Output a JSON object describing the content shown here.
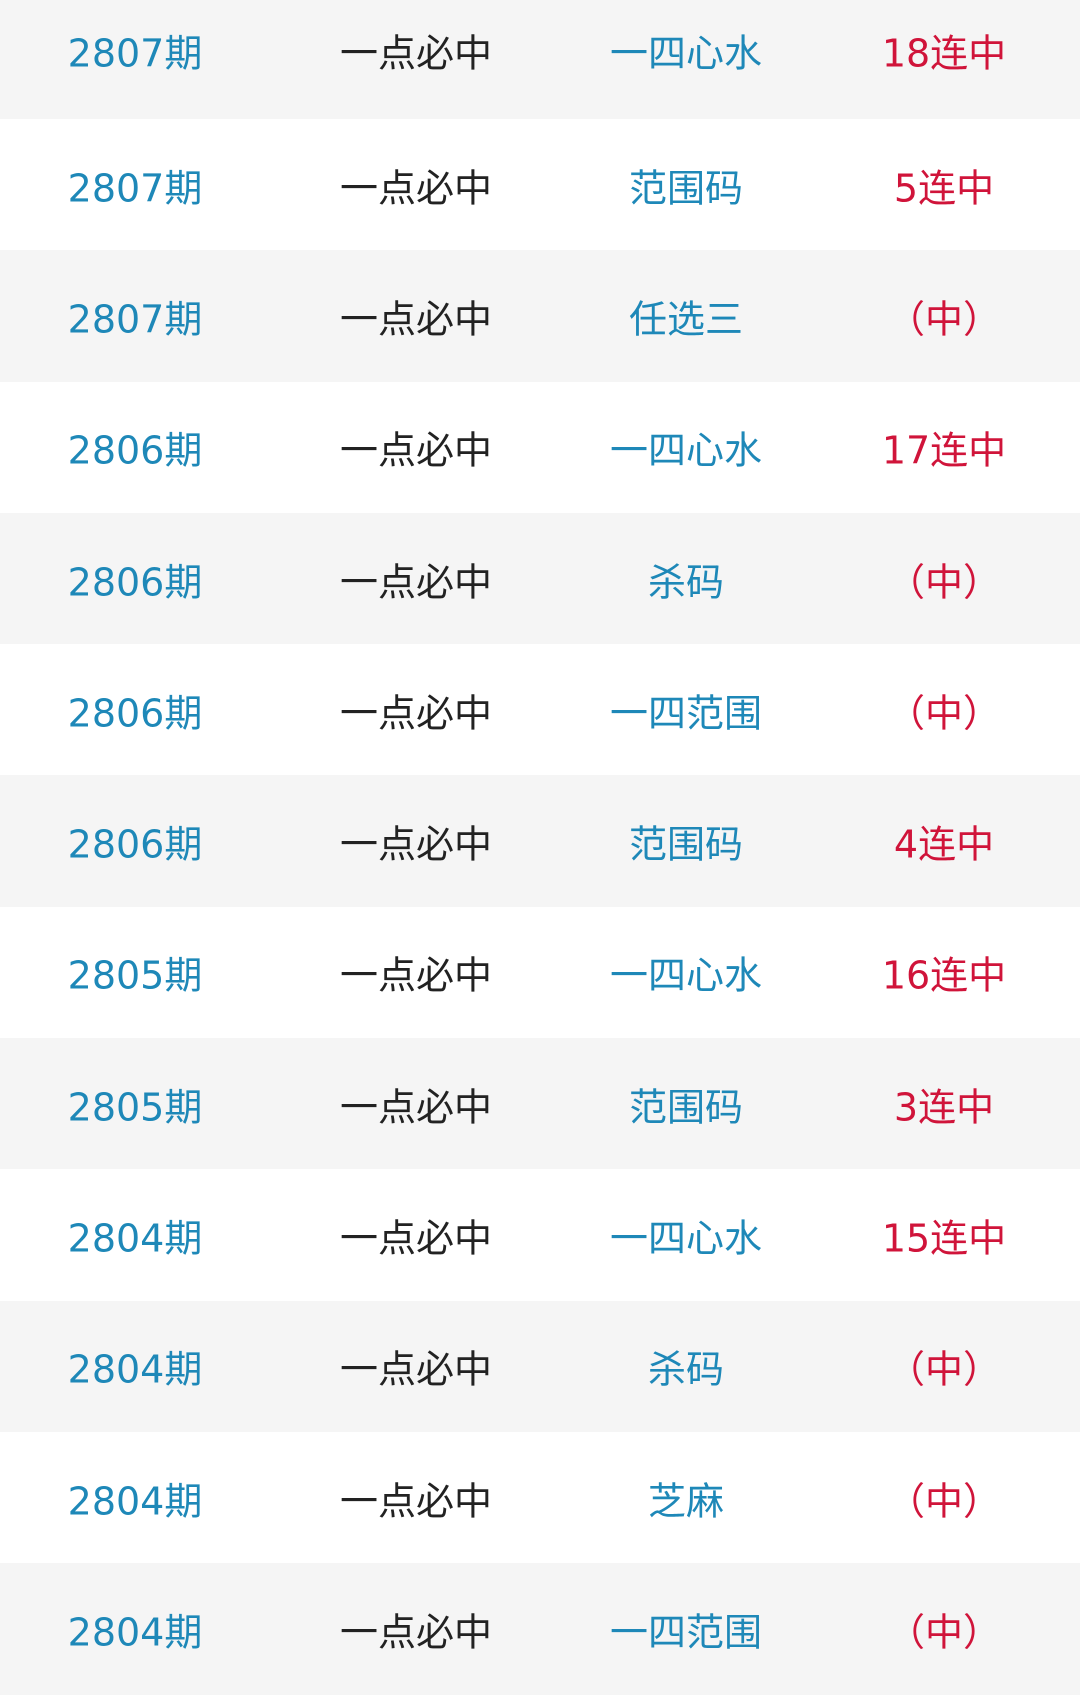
{
  "colors": {
    "issue": "#1e88b8",
    "type": "#222222",
    "category": "#1e88b8",
    "result": "#d0143a",
    "stripe": "#f5f5f5"
  },
  "rows": [
    {
      "issue": "2807期",
      "type": "一点必中",
      "category": "一四心水",
      "result": "18连中"
    },
    {
      "issue": "2807期",
      "type": "一点必中",
      "category": "范围码",
      "result": "5连中"
    },
    {
      "issue": "2807期",
      "type": "一点必中",
      "category": "任选三",
      "result": "（中）"
    },
    {
      "issue": "2806期",
      "type": "一点必中",
      "category": "一四心水",
      "result": "17连中"
    },
    {
      "issue": "2806期",
      "type": "一点必中",
      "category": "杀码",
      "result": "（中）"
    },
    {
      "issue": "2806期",
      "type": "一点必中",
      "category": "一四范围",
      "result": "（中）"
    },
    {
      "issue": "2806期",
      "type": "一点必中",
      "category": "范围码",
      "result": "4连中"
    },
    {
      "issue": "2805期",
      "type": "一点必中",
      "category": "一四心水",
      "result": "16连中"
    },
    {
      "issue": "2805期",
      "type": "一点必中",
      "category": "范围码",
      "result": "3连中"
    },
    {
      "issue": "2804期",
      "type": "一点必中",
      "category": "一四心水",
      "result": "15连中"
    },
    {
      "issue": "2804期",
      "type": "一点必中",
      "category": "杀码",
      "result": "（中）"
    },
    {
      "issue": "2804期",
      "type": "一点必中",
      "category": "芝麻",
      "result": "（中）"
    },
    {
      "issue": "2804期",
      "type": "一点必中",
      "category": "一四范围",
      "result": "（中）"
    }
  ]
}
